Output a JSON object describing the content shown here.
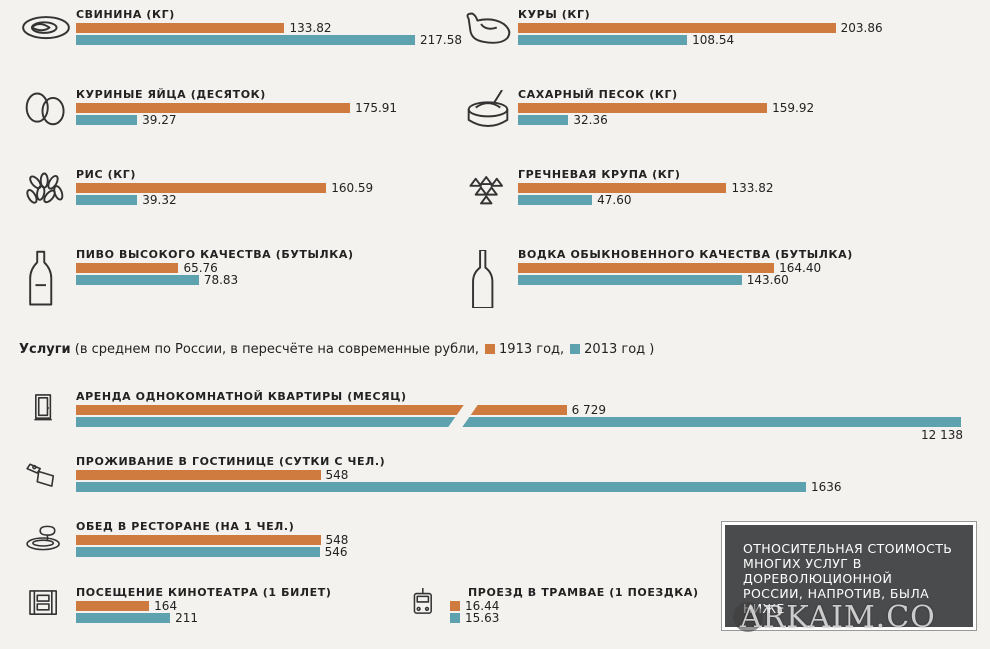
{
  "colors": {
    "y1913": "#cf7a3e",
    "y2013": "#5ea2b0"
  },
  "legend": {
    "title": "Услуги",
    "rest": " (в среднем по России, в пересчёте на современные рубли,",
    "y1913": "1913 год,",
    "y2013": "2013 год )"
  },
  "note": "ОТНОСИТЕЛЬНАЯ СТОИМОСТЬ МНОГИХ УСЛУГ В ДОРЕВОЛЮЦИОННОЙ РОССИИ, НАПРОТИВ, БЫЛА НИЖЕ",
  "watermark": "ARKAIM.CO",
  "chart_data": [
    {
      "type": "bar",
      "series": [
        {
          "name": "1913 год"
        },
        {
          "name": "2013 год"
        }
      ],
      "items": [
        {
          "name": "СВИНИНА (КГ)",
          "icon": "pork-icon",
          "v1913": 133.82,
          "v2013": 217.58,
          "l1913": "133.82",
          "l2013": "217.58"
        },
        {
          "name": "КУРЫ (КГ)",
          "icon": "chicken-icon",
          "v1913": 203.86,
          "v2013": 108.54,
          "l1913": "203.86",
          "l2013": "108.54"
        },
        {
          "name": "КУРИНЫЕ ЯЙЦА (ДЕСЯТОК)",
          "icon": "eggs-icon",
          "v1913": 175.91,
          "v2013": 39.27,
          "l1913": "175.91",
          "l2013": "39.27"
        },
        {
          "name": "САХАРНЫЙ ПЕСОК (КГ)",
          "icon": "sugar-icon",
          "v1913": 159.92,
          "v2013": 32.36,
          "l1913": "159.92",
          "l2013": "32.36"
        },
        {
          "name": "РИС (КГ)",
          "icon": "rice-icon",
          "v1913": 160.59,
          "v2013": 39.32,
          "l1913": "160.59",
          "l2013": "39.32"
        },
        {
          "name": "ГРЕЧНЕВАЯ КРУПА (КГ)",
          "icon": "buckwheat-icon",
          "v1913": 133.82,
          "v2013": 47.6,
          "l1913": "133.82",
          "l2013": "47.60"
        },
        {
          "name": "ПИВО ВЫСОКОГО КАЧЕСТВА (БУТЫЛКА)",
          "icon": "beer-bottle-icon",
          "v1913": 65.76,
          "v2013": 78.83,
          "l1913": "65.76",
          "l2013": "78.83"
        },
        {
          "name": "ВОДКА ОБЫКНОВЕННОГО КАЧЕСТВА (БУТЫЛКА)",
          "icon": "vodka-bottle-icon",
          "v1913": 164.4,
          "v2013": 143.6,
          "l1913": "164.40",
          "l2013": "143.60"
        }
      ]
    },
    {
      "type": "bar",
      "title": "Услуги",
      "series": [
        {
          "name": "1913 год"
        },
        {
          "name": "2013 год"
        }
      ],
      "items": [
        {
          "name": "АРЕНДА ОДНОКОМНАТНОЙ КВАРТИРЫ (МЕСЯЦ)",
          "icon": "door-icon",
          "v1913": 6729,
          "v2013": 12138,
          "l1913": "6 729",
          "l2013": "12 138",
          "axis_break": true
        },
        {
          "name": "ПРОЖИВАНИЕ В ГОСТИНИЦЕ (СУТКИ С ЧЕЛ.)",
          "icon": "hotel-key-icon",
          "v1913": 548,
          "v2013": 1636,
          "l1913": "548",
          "l2013": "1636"
        },
        {
          "name": "ОБЕД В РЕСТОРАНЕ (НА 1 ЧЕЛ.)",
          "icon": "dinner-plate-icon",
          "v1913": 548,
          "v2013": 546,
          "l1913": "548",
          "l2013": "546"
        },
        {
          "name": "ПОСЕЩЕНИЕ КИНОТЕАТРА (1 БИЛЕТ)",
          "icon": "film-strip-icon",
          "v1913": 164,
          "v2013": 211,
          "l1913": "164",
          "l2013": "211"
        },
        {
          "name": "ПРОЕЗД В ТРАМВАЕ (1 ПОЕЗДКА)",
          "icon": "tram-icon",
          "v1913": 16.44,
          "v2013": 15.63,
          "l1913": "16.44",
          "l2013": "15.63"
        }
      ]
    }
  ]
}
